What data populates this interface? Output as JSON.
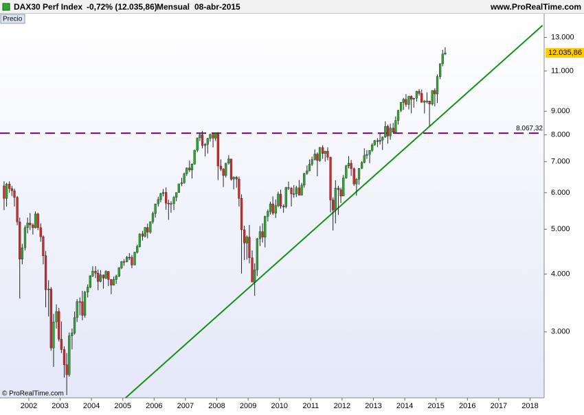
{
  "header": {
    "instrument": "DAX30 Perf Index",
    "change": "-0,72% (12.035,86)",
    "period": "Mensual",
    "date": "08-abr-2015",
    "website": "www.ProRealTime.com",
    "panel": "Precio",
    "copyright": "© ProRealTime.com"
  },
  "chart_data": {
    "type": "candlestick",
    "log_y": true,
    "up_color": "#2ea82e",
    "down_color": "#d42a2a",
    "wick_color": "#222222",
    "xlim": [
      2001.08,
      2018.45
    ],
    "xticks": [
      2002,
      2003,
      2004,
      2005,
      2006,
      2007,
      2008,
      2009,
      2010,
      2011,
      2012,
      2013,
      2014,
      2015,
      2016,
      2017,
      2018
    ],
    "ylim": [
      2160,
      13800
    ],
    "yticks": [
      {
        "value": 3000,
        "label": "3.000"
      },
      {
        "value": 4000,
        "label": "4.000"
      },
      {
        "value": 5000,
        "label": "5.000"
      },
      {
        "value": 6000,
        "label": "6.000"
      },
      {
        "value": 7000,
        "label": "7.000"
      },
      {
        "value": 8000,
        "label": "8.000"
      },
      {
        "value": 9000,
        "label": "9.000"
      },
      {
        "value": 11000,
        "label": "11.000"
      },
      {
        "value": 13000,
        "label": "13.000"
      }
    ],
    "last_price": {
      "value": 12035.86,
      "label": "12.035,86",
      "color": "#ffcc00"
    },
    "hline": {
      "value": 8067.32,
      "label": "8.067,32",
      "color": "#800080"
    },
    "trendline": {
      "x": [
        2005.09,
        2018.4
      ],
      "y": [
        2160,
        13800
      ],
      "color": "#109010"
    },
    "x": [
      2001.21,
      2001.29,
      2001.38,
      2001.46,
      2001.54,
      2001.63,
      2001.71,
      2001.79,
      2001.88,
      2001.96,
      2002.04,
      2002.13,
      2002.21,
      2002.29,
      2002.38,
      2002.46,
      2002.54,
      2002.63,
      2002.71,
      2002.79,
      2002.88,
      2002.96,
      2003.04,
      2003.13,
      2003.21,
      2003.29,
      2003.38,
      2003.46,
      2003.54,
      2003.63,
      2003.71,
      2003.79,
      2003.88,
      2003.96,
      2004.04,
      2004.13,
      2004.21,
      2004.29,
      2004.38,
      2004.46,
      2004.54,
      2004.63,
      2004.71,
      2004.79,
      2004.88,
      2004.96,
      2005.04,
      2005.13,
      2005.21,
      2005.29,
      2005.38,
      2005.46,
      2005.54,
      2005.63,
      2005.71,
      2005.79,
      2005.88,
      2005.96,
      2006.04,
      2006.13,
      2006.21,
      2006.29,
      2006.38,
      2006.46,
      2006.54,
      2006.63,
      2006.71,
      2006.79,
      2006.88,
      2006.96,
      2007.04,
      2007.13,
      2007.21,
      2007.29,
      2007.38,
      2007.46,
      2007.54,
      2007.63,
      2007.71,
      2007.79,
      2007.88,
      2007.96,
      2008.04,
      2008.13,
      2008.21,
      2008.29,
      2008.38,
      2008.46,
      2008.54,
      2008.63,
      2008.71,
      2008.79,
      2008.88,
      2008.96,
      2009.04,
      2009.13,
      2009.21,
      2009.29,
      2009.38,
      2009.46,
      2009.54,
      2009.63,
      2009.71,
      2009.79,
      2009.88,
      2009.96,
      2010.04,
      2010.13,
      2010.21,
      2010.29,
      2010.38,
      2010.46,
      2010.54,
      2010.63,
      2010.71,
      2010.79,
      2010.88,
      2010.96,
      2011.04,
      2011.13,
      2011.21,
      2011.29,
      2011.38,
      2011.46,
      2011.54,
      2011.63,
      2011.71,
      2011.79,
      2011.88,
      2011.96,
      2012.04,
      2012.13,
      2012.21,
      2012.29,
      2012.38,
      2012.46,
      2012.54,
      2012.63,
      2012.71,
      2012.79,
      2012.88,
      2012.96,
      2013.04,
      2013.13,
      2013.21,
      2013.29,
      2013.38,
      2013.46,
      2013.54,
      2013.63,
      2013.71,
      2013.79,
      2013.88,
      2013.96,
      2014.04,
      2014.13,
      2014.21,
      2014.29,
      2014.38,
      2014.46,
      2014.54,
      2014.63,
      2014.71,
      2014.79,
      2014.88,
      2014.96,
      2015.04,
      2015.13,
      2015.21,
      2015.29
    ],
    "open": [
      6208,
      5830,
      6264,
      6123,
      6058,
      5862,
      5188,
      4308,
      4559,
      5040,
      5160,
      5108,
      5039,
      5397,
      5041,
      4818,
      4383,
      3700,
      3713,
      2769,
      3153,
      3320,
      2893,
      2748,
      2547,
      2424,
      2942,
      2983,
      3221,
      3487,
      3485,
      3257,
      3656,
      3745,
      3965,
      4059,
      4018,
      3856,
      3985,
      3921,
      4053,
      3895,
      3785,
      3893,
      3960,
      4126,
      4256,
      4254,
      4350,
      4349,
      4185,
      4461,
      4586,
      4887,
      4829,
      5044,
      4929,
      5193,
      5408,
      5674,
      5797,
      5970,
      6009,
      5692,
      5683,
      5682,
      5860,
      6004,
      6269,
      6309,
      6597,
      6789,
      6716,
      6917,
      7409,
      7883,
      8007,
      7584,
      7638,
      7862,
      8019,
      7871,
      8067,
      6851,
      6748,
      6535,
      6949,
      7097,
      6418,
      6479,
      6422,
      5831,
      4988,
      4669,
      4810,
      4338,
      3844,
      4085,
      4770,
      4941,
      4809,
      5332,
      5465,
      5675,
      5415,
      5626,
      5957,
      5608,
      5598,
      6154,
      6136,
      5965,
      5966,
      6148,
      5925,
      6229,
      6601,
      6688,
      6914,
      7077,
      7273,
      7041,
      7514,
      7294,
      7376,
      7159,
      5785,
      5502,
      6141,
      6089,
      5898,
      6458,
      6856,
      6947,
      6761,
      6264,
      6416,
      6772,
      6971,
      7216,
      7260,
      7405,
      7612,
      7776,
      7742,
      7795,
      7914,
      8349,
      7959,
      8276,
      8104,
      8594,
      9034,
      9405,
      9552,
      9306,
      9692,
      9556,
      9603,
      9943,
      9833,
      9407,
      9470,
      9474,
      9327,
      9980,
      9806,
      10694,
      11402,
      11966
    ],
    "high": [
      6350,
      6300,
      6350,
      6200,
      6120,
      5900,
      5300,
      4650,
      5100,
      5300,
      5420,
      5150,
      5467,
      5430,
      5150,
      4850,
      4490,
      3880,
      3750,
      3280,
      3440,
      3380,
      3160,
      2790,
      2700,
      2990,
      3050,
      3320,
      3530,
      3560,
      3680,
      3680,
      3800,
      3980,
      4160,
      4160,
      4090,
      4080,
      3990,
      4080,
      4060,
      3900,
      3950,
      3990,
      4140,
      4270,
      4310,
      4380,
      4440,
      4400,
      4470,
      4630,
      4900,
      4960,
      5060,
      5140,
      5200,
      5460,
      5680,
      5880,
      6000,
      6110,
      6160,
      5790,
      5750,
      5900,
      6010,
      6280,
      6460,
      6630,
      6800,
      7040,
      6940,
      7430,
      7890,
      8090,
      8150,
      7680,
      7880,
      8050,
      8080,
      8100,
      8110,
      7080,
      6780,
      6960,
      7230,
      7100,
      6510,
      6520,
      6500,
      5950,
      5090,
      4850,
      5110,
      4500,
      4220,
      4790,
      5080,
      5150,
      5350,
      5520,
      5740,
      5890,
      5800,
      6030,
      6090,
      5660,
      6180,
      6340,
      6170,
      6230,
      6210,
      6390,
      6300,
      6620,
      6870,
      7080,
      7180,
      7440,
      7330,
      7530,
      7600,
      7390,
      7520,
      7180,
      5860,
      6380,
      6210,
      6150,
      6550,
      6890,
      7200,
      7060,
      6800,
      6450,
      6780,
      7020,
      7480,
      7420,
      7420,
      7680,
      7800,
      7870,
      8060,
      7940,
      8560,
      8420,
      8460,
      8490,
      8770,
      9070,
      9420,
      9620,
      9800,
      9720,
      9740,
      9620,
      9960,
      10050,
      10030,
      9520,
      9890,
      9480,
      9990,
      10090,
      10810,
      11420,
      12220,
      12380
    ],
    "low": [
      5500,
      5600,
      6000,
      5900,
      5600,
      5100,
      3540,
      4200,
      4500,
      4900,
      4980,
      4870,
      5020,
      4980,
      4700,
      4200,
      3390,
      3240,
      2730,
      2520,
      3050,
      2860,
      2700,
      2390,
      2190,
      2400,
      2750,
      2960,
      3150,
      3260,
      3180,
      3220,
      3560,
      3730,
      3940,
      3920,
      3690,
      3840,
      3720,
      3900,
      3770,
      3620,
      3780,
      3810,
      3940,
      4100,
      4170,
      4240,
      4290,
      4120,
      4180,
      4430,
      4570,
      4730,
      4800,
      4780,
      4890,
      5140,
      5300,
      5600,
      5720,
      5890,
      5510,
      5240,
      5430,
      5500,
      5750,
      6000,
      6200,
      6270,
      6520,
      6650,
      6440,
      6900,
      7340,
      7760,
      7480,
      7190,
      7290,
      7740,
      7520,
      7760,
      6390,
      6680,
      6170,
      6470,
      6900,
      6370,
      6100,
      6150,
      5600,
      4010,
      4290,
      4300,
      4220,
      3840,
      3590,
      3960,
      4600,
      4680,
      4570,
      5200,
      5380,
      5370,
      5290,
      5580,
      5540,
      5430,
      5550,
      6080,
      5600,
      5850,
      5870,
      5920,
      5920,
      6150,
      6560,
      6680,
      6850,
      7040,
      6510,
      7000,
      7100,
      7000,
      7050,
      5440,
      4970,
      5150,
      5370,
      5700,
      5900,
      6430,
      6770,
      6520,
      6210,
      5910,
      6240,
      6750,
      6950,
      7100,
      6950,
      7350,
      7580,
      7530,
      7620,
      7420,
      7880,
      7660,
      7810,
      8100,
      8100,
      8420,
      8960,
      9060,
      9200,
      9080,
      8910,
      9160,
      9440,
      9730,
      9400,
      8900,
      9360,
      8350,
      9260,
      9220,
      9380,
      10560,
      11260,
      11900
    ],
    "close": [
      5830,
      6264,
      6123,
      6058,
      5862,
      5188,
      4308,
      4559,
      5040,
      5160,
      5108,
      5039,
      5397,
      5041,
      4818,
      4383,
      3700,
      3713,
      2769,
      3153,
      3320,
      2893,
      2748,
      2547,
      2424,
      2942,
      2983,
      3221,
      3487,
      3485,
      3257,
      3656,
      3745,
      3965,
      4059,
      4018,
      3856,
      3985,
      3921,
      4053,
      3895,
      3785,
      3893,
      3960,
      4126,
      4256,
      4254,
      4350,
      4349,
      4185,
      4461,
      4586,
      4887,
      4829,
      5044,
      4929,
      5193,
      5408,
      5674,
      5797,
      5970,
      6009,
      5692,
      5683,
      5682,
      5860,
      6004,
      6269,
      6309,
      6597,
      6789,
      6716,
      6917,
      7409,
      7883,
      8007,
      7584,
      7638,
      7862,
      8019,
      7871,
      8067,
      6851,
      6748,
      6535,
      6949,
      7097,
      6418,
      6479,
      6422,
      5831,
      4988,
      4669,
      4810,
      4338,
      3844,
      4085,
      4770,
      4941,
      4809,
      5332,
      5465,
      5675,
      5415,
      5626,
      5957,
      5608,
      5598,
      6154,
      6136,
      5965,
      5966,
      6148,
      5925,
      6229,
      6601,
      6688,
      6914,
      7077,
      7273,
      7041,
      7514,
      7294,
      7376,
      7159,
      5785,
      5502,
      6141,
      6089,
      5898,
      6458,
      6856,
      6947,
      6761,
      6264,
      6416,
      6772,
      6971,
      7216,
      7260,
      7405,
      7612,
      7776,
      7742,
      7795,
      7914,
      8349,
      7959,
      8276,
      8104,
      8594,
      9034,
      9405,
      9552,
      9306,
      9692,
      9556,
      9603,
      9943,
      9833,
      9407,
      9470,
      9474,
      9327,
      9980,
      9806,
      10694,
      11402,
      11966,
      12036
    ]
  }
}
